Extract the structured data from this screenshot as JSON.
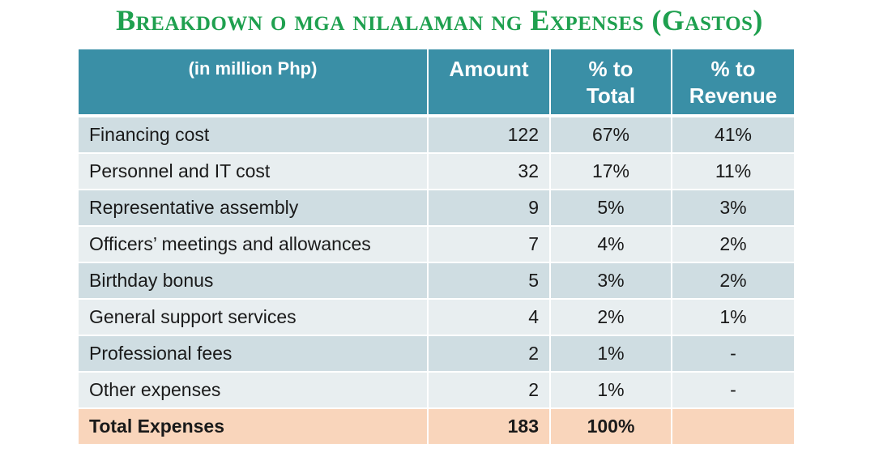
{
  "title": "Breakdown o mga nilalaman ng Expenses (Gastos)",
  "table": {
    "headers": {
      "label": "(in million Php)",
      "amount": "Amount",
      "pct_total_line1": "% to",
      "pct_total_line2": "Total",
      "pct_revenue_line1": "% to",
      "pct_revenue_line2": "Revenue"
    },
    "rows": [
      {
        "label": "Financing cost",
        "amount": "122",
        "pct_total": "67%",
        "pct_revenue": "41%"
      },
      {
        "label": "Personnel and IT cost",
        "amount": "32",
        "pct_total": "17%",
        "pct_revenue": "11%"
      },
      {
        "label": "Representative assembly",
        "amount": "9",
        "pct_total": "5%",
        "pct_revenue": "3%"
      },
      {
        "label": "Officers’ meetings and allowances",
        "amount": "7",
        "pct_total": "4%",
        "pct_revenue": "2%"
      },
      {
        "label": "Birthday bonus",
        "amount": "5",
        "pct_total": "3%",
        "pct_revenue": "2%"
      },
      {
        "label": "General support services",
        "amount": "4",
        "pct_total": "2%",
        "pct_revenue": "1%"
      },
      {
        "label": "Professional fees",
        "amount": "2",
        "pct_total": "1%",
        "pct_revenue": "-"
      },
      {
        "label": "Other expenses",
        "amount": "2",
        "pct_total": "1%",
        "pct_revenue": "-"
      }
    ],
    "total": {
      "label": "Total Expenses",
      "amount": "183",
      "pct_total": "100%",
      "pct_revenue": ""
    }
  },
  "colors": {
    "title": "#1fa04f",
    "header_bg": "#3a8fa6",
    "row_dark": "#cfdde2",
    "row_light": "#e8eef0",
    "total_bg": "#f9d5bb"
  }
}
